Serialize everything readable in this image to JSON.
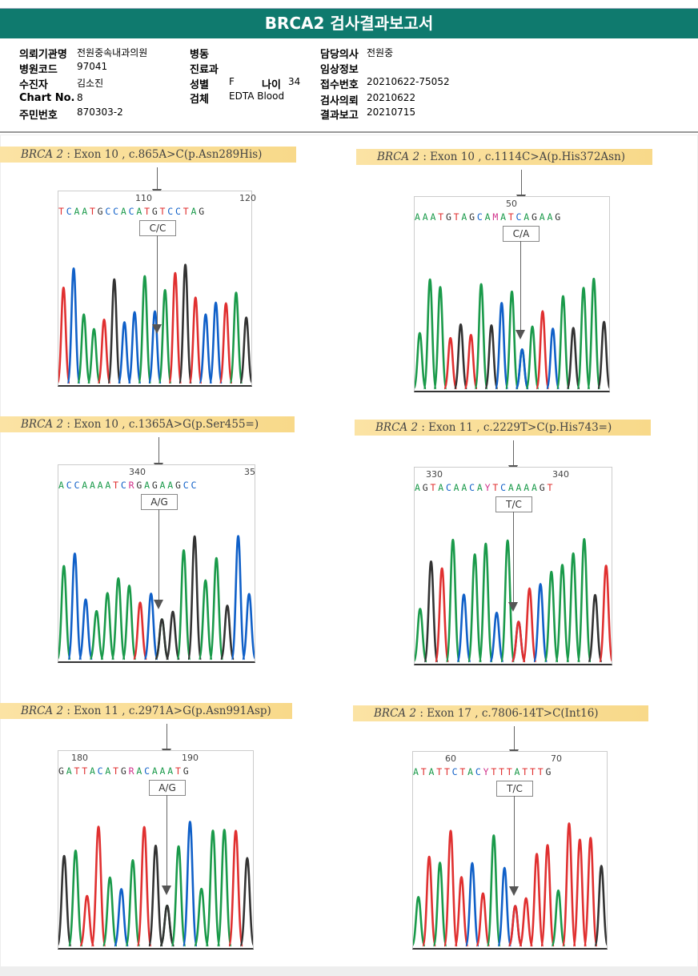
{
  "title": "BRCA2 검사결과보고서",
  "info": {
    "col1": [
      {
        "label": "의뢰기관명",
        "value": "전원중속내과의원"
      },
      {
        "label": "병원코드",
        "value": "97041"
      },
      {
        "label": "수진자",
        "value": "김소진"
      },
      {
        "label": "Chart No.",
        "value": "8"
      },
      {
        "label": "주민번호",
        "value": "870303-2"
      }
    ],
    "col2": [
      {
        "label": "병동",
        "value": ""
      },
      {
        "label": "진료과",
        "value": ""
      },
      {
        "label": "성별",
        "value": "F"
      },
      {
        "label": "검체",
        "value": "EDTA Blood"
      }
    ],
    "age": {
      "label": "나이",
      "value": "34"
    },
    "col3": [
      {
        "label": "담당의사",
        "value": "전원중"
      },
      {
        "label": "임상정보",
        "value": ""
      },
      {
        "label": "접수번호",
        "value": "20210622-75052"
      },
      {
        "label": "검사의뢰",
        "value": "20210622"
      },
      {
        "label": "결과보고",
        "value": "20210715"
      }
    ]
  },
  "colors": {
    "A": "#1a9a4a",
    "C": "#1060c8",
    "G": "#333333",
    "T": "#e03030",
    "variant": "#d0308a"
  },
  "panels": [
    {
      "gene": "BRCA 2",
      "desc": ": Exon 10 , c.865A>C(p.Asn289His)",
      "positions": [
        "110",
        "120"
      ],
      "sequence": "TCAATGCCACATGTCCTAG",
      "genotype": "C/C"
    },
    {
      "gene": "BRCA 2",
      "desc": ": Exon 10 , c.1114C>A(p.His372Asn)",
      "positions": [
        "50"
      ],
      "sequence": "AAATGTAGCAMATCAGAAG",
      "genotype": "C/A"
    },
    {
      "gene": "BRCA 2",
      "desc": ": Exon 10 , c.1365A>G(p.Ser455=)",
      "positions": [
        "340",
        "35"
      ],
      "sequence": "ACCAAAATCRGAGAAGCC",
      "genotype": "A/G"
    },
    {
      "gene": "BRCA 2",
      "desc": ": Exon 11 , c.2229T>C(p.His743=)",
      "positions": [
        "330",
        "340"
      ],
      "sequence": "AGTACAACAYTCAAAAGT",
      "genotype": "T/C"
    },
    {
      "gene": "BRCA 2",
      "desc": ": Exon 11 , c.2971A>G(p.Asn991Asp)",
      "positions": [
        "180",
        "190"
      ],
      "sequence": "GATTACATGRACAAATG",
      "genotype": "A/G"
    },
    {
      "gene": "BRCA 2",
      "desc": ": Exon 17 , c.7806-14T>C(Int16)",
      "positions": [
        "60",
        "70"
      ],
      "sequence": "ATATTCTACYTTTATTTG",
      "genotype": "T/C"
    }
  ]
}
